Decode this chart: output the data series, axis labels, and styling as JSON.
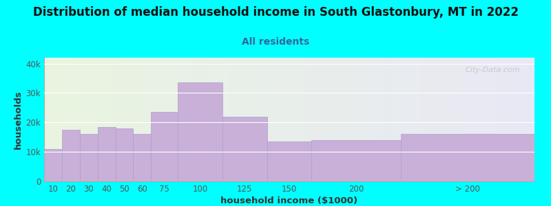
{
  "title": "Distribution of median household income in South Glastonbury, MT in 2022",
  "subtitle": "All residents",
  "xlabel": "household income ($1000)",
  "ylabel": "households",
  "background_color": "#00FFFF",
  "bar_color": "#c8b0d8",
  "bar_edge_color": "#b09ccc",
  "categories": [
    "10",
    "20",
    "30",
    "40",
    "50",
    "60",
    "75",
    "100",
    "125",
    "150",
    "200",
    "> 200"
  ],
  "values": [
    11000,
    17500,
    16000,
    18500,
    18000,
    16000,
    23500,
    33500,
    22000,
    13500,
    14000,
    16000
  ],
  "bar_lefts": [
    0,
    10,
    20,
    30,
    40,
    50,
    60,
    75,
    100,
    125,
    150,
    200
  ],
  "bar_widths": [
    10,
    10,
    10,
    10,
    10,
    10,
    15,
    25,
    25,
    25,
    50,
    75
  ],
  "yticks": [
    0,
    10000,
    20000,
    30000,
    40000
  ],
  "ytick_labels": [
    "0",
    "10k",
    "20k",
    "30k",
    "40k"
  ],
  "ylim": [
    0,
    42000
  ],
  "xlim": [
    0,
    275
  ],
  "title_fontsize": 12,
  "subtitle_fontsize": 10,
  "axis_label_fontsize": 9.5,
  "tick_fontsize": 8.5,
  "watermark_text": "City-Data.com"
}
